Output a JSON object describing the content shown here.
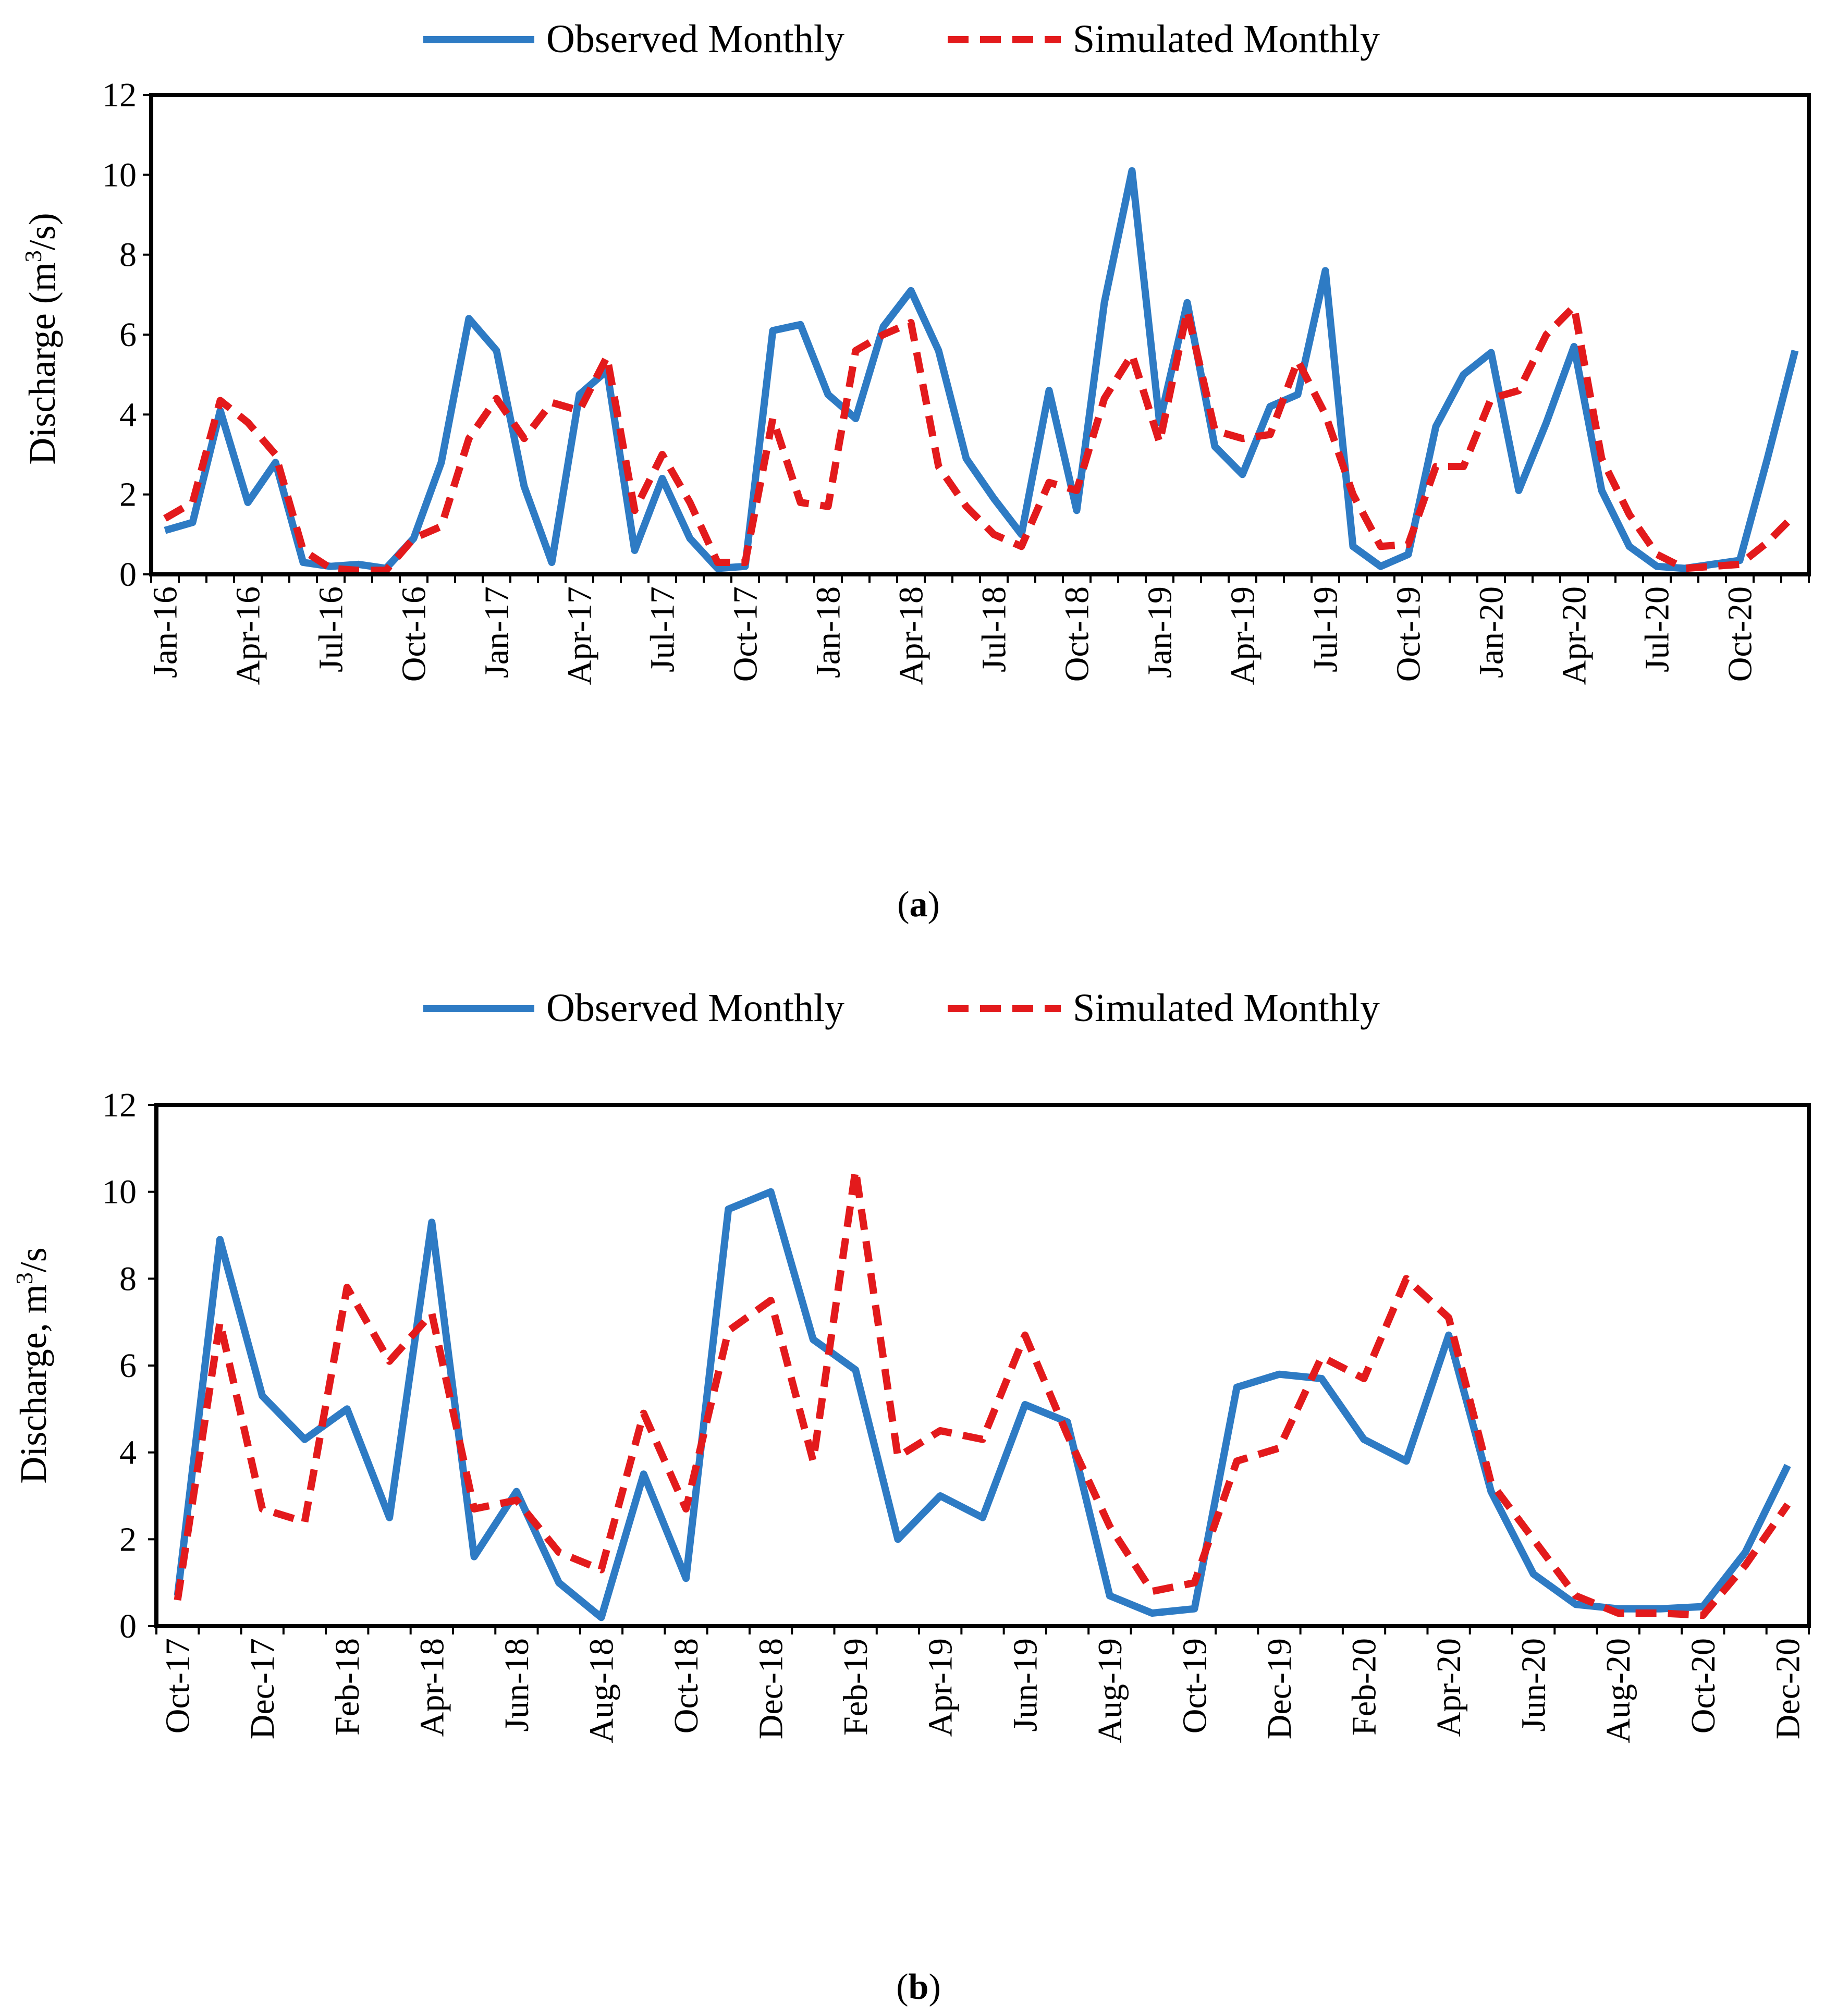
{
  "colors": {
    "observed": "#2E7BC4",
    "simulated": "#E31A1C",
    "axis": "#000000",
    "background": "#FFFFFF"
  },
  "chart_data": [
    {
      "type": "line",
      "panel_label": "a",
      "caption_open": "(",
      "caption_close": ")",
      "legend": [
        "Observed Monthly",
        "Simulated Monthly"
      ],
      "ylabel": {
        "pre": "Discharge (m",
        "sup": "3",
        "post": "/s)"
      },
      "ylim": [
        0,
        12
      ],
      "yticks": [
        0,
        2,
        4,
        6,
        8,
        10,
        12
      ],
      "xtick_labels": [
        "Jan-16",
        "Apr-16",
        "Jul-16",
        "Oct-16",
        "Jan-17",
        "Apr-17",
        "Jul-17",
        "Oct-17",
        "Jan-18",
        "Apr-18",
        "Jul-18",
        "Oct-18",
        "Jan-19",
        "Apr-19",
        "Jul-19",
        "Oct-19",
        "Jan-20",
        "Apr-20",
        "Jul-20",
        "Oct-20"
      ],
      "xtick_step": 3,
      "n_months": 60,
      "series": [
        {
          "name": "Observed Monthly",
          "style": "solid",
          "values": [
            1.1,
            1.3,
            4.1,
            1.8,
            2.8,
            0.3,
            0.2,
            0.25,
            0.15,
            0.9,
            2.8,
            6.4,
            5.6,
            2.2,
            0.3,
            4.5,
            5.1,
            0.6,
            2.4,
            0.9,
            0.15,
            0.2,
            6.1,
            6.25,
            4.5,
            3.9,
            6.2,
            7.1,
            5.6,
            2.9,
            1.9,
            1.0,
            4.6,
            1.6,
            6.8,
            10.1,
            3.8,
            6.8,
            3.2,
            2.5,
            4.2,
            4.5,
            7.6,
            0.7,
            0.2,
            0.5,
            3.7,
            5.0,
            5.55,
            2.1,
            3.8,
            5.7,
            2.1,
            0.7,
            0.2,
            0.15,
            0.25,
            0.35,
            2.9,
            5.6
          ]
        },
        {
          "name": "Simulated Monthly",
          "style": "dashed",
          "values": [
            1.4,
            1.8,
            4.35,
            3.8,
            3.0,
            0.6,
            0.15,
            0.1,
            0.1,
            0.9,
            1.2,
            3.4,
            4.4,
            3.4,
            4.3,
            4.1,
            5.45,
            1.6,
            3.0,
            1.8,
            0.3,
            0.3,
            3.9,
            1.8,
            1.7,
            5.6,
            6.0,
            6.3,
            2.7,
            1.7,
            1.0,
            0.7,
            2.3,
            2.1,
            4.4,
            5.5,
            3.3,
            6.6,
            3.6,
            3.4,
            3.5,
            5.35,
            4.0,
            2.0,
            0.7,
            0.75,
            2.7,
            2.7,
            4.4,
            4.6,
            6.0,
            6.7,
            2.9,
            1.5,
            0.5,
            0.15,
            0.2,
            0.25,
            0.8,
            1.5
          ]
        }
      ]
    },
    {
      "type": "line",
      "panel_label": "b",
      "caption_open": "(",
      "caption_close": ")",
      "legend": [
        "Observed Monthly",
        "Simulated Monthly"
      ],
      "ylabel": {
        "pre": "Discharge, m",
        "sup": "3",
        "post": "/s"
      },
      "ylim": [
        0,
        12
      ],
      "yticks": [
        0,
        2,
        4,
        6,
        8,
        10,
        12
      ],
      "xtick_labels": [
        "Oct-17",
        "Dec-17",
        "Feb-18",
        "Apr-18",
        "Jun-18",
        "Aug-18",
        "Oct-18",
        "Dec-18",
        "Feb-19",
        "Apr-19",
        "Jun-19",
        "Aug-19",
        "Oct-19",
        "Dec-19",
        "Feb-20",
        "Apr-20",
        "Jun-20",
        "Aug-20",
        "Oct-20",
        "Dec-20"
      ],
      "xtick_step": 2,
      "n_months": 39,
      "series": [
        {
          "name": "Observed Monthly",
          "style": "solid",
          "values": [
            0.7,
            8.9,
            5.3,
            4.3,
            5.0,
            2.5,
            9.3,
            1.6,
            3.1,
            1.0,
            0.2,
            3.5,
            1.1,
            9.6,
            10.0,
            6.6,
            5.9,
            2.0,
            3.0,
            2.5,
            5.1,
            4.7,
            0.7,
            0.3,
            0.4,
            5.5,
            5.8,
            5.7,
            4.3,
            3.8,
            6.7,
            3.1,
            1.2,
            0.5,
            0.4,
            0.4,
            0.45,
            1.7,
            3.7
          ]
        },
        {
          "name": "Simulated Monthly",
          "style": "dashed",
          "values": [
            0.6,
            7.0,
            2.7,
            2.4,
            7.8,
            6.1,
            7.2,
            2.7,
            2.9,
            1.7,
            1.3,
            4.9,
            2.7,
            6.8,
            7.5,
            3.8,
            10.5,
            3.9,
            4.5,
            4.3,
            6.7,
            4.4,
            2.3,
            0.8,
            1.0,
            3.8,
            4.1,
            6.2,
            5.7,
            8.0,
            7.1,
            3.3,
            2.0,
            0.7,
            0.3,
            0.3,
            0.25,
            1.4,
            2.8
          ]
        }
      ]
    }
  ]
}
